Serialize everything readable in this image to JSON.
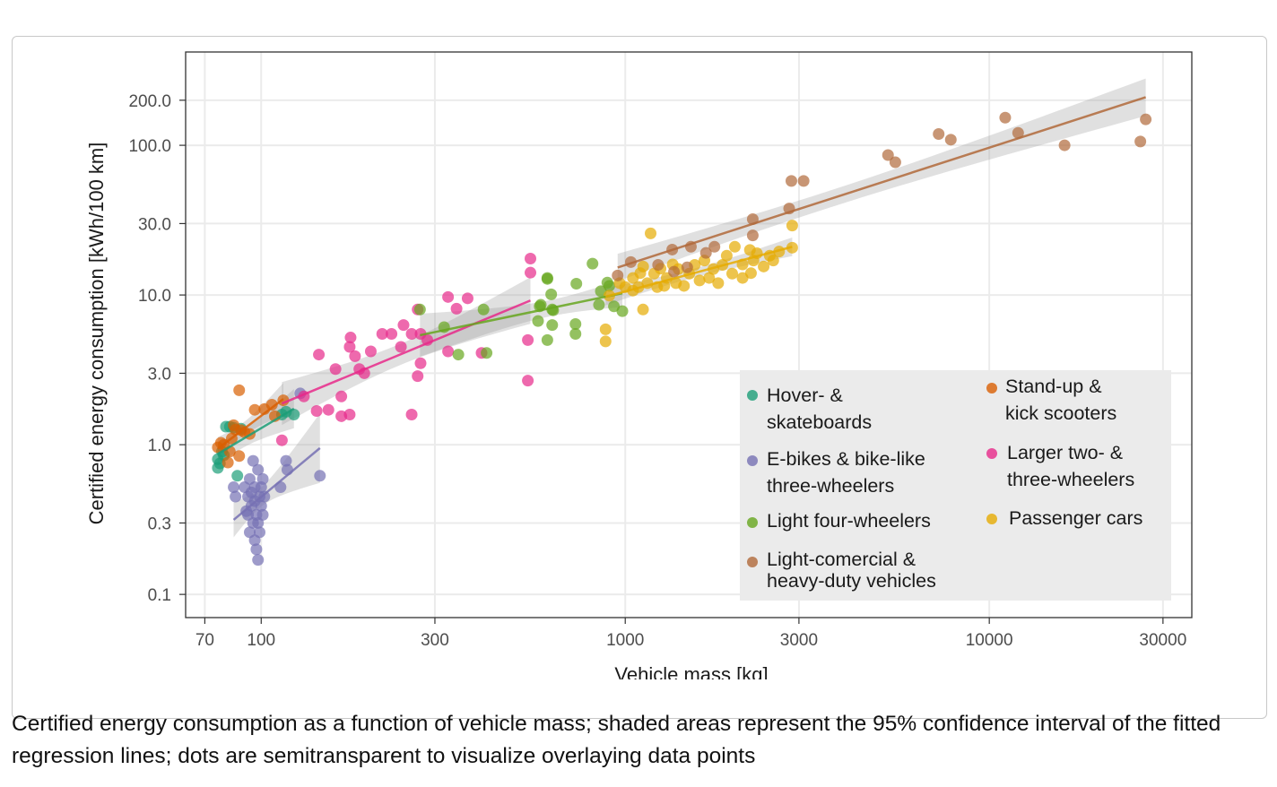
{
  "caption": "Certified energy consumption as a function of vehicle mass; shaded areas represent the 95% confidence interval of the fitted regression lines; dots are semitransparent to visualize overlaying data points",
  "chart_data": {
    "type": "scatter",
    "xlabel": "Vehicle mass [kg]",
    "ylabel": "Certified energy consumption [kWh/100 km]",
    "xscale": "log",
    "yscale": "log",
    "xlim": [
      62,
      36000
    ],
    "ylim": [
      0.07,
      420
    ],
    "xticks": [
      70,
      100,
      300,
      1000,
      3000,
      10000,
      30000
    ],
    "xtick_labels": [
      "70",
      "100",
      "300",
      "1000",
      "3000",
      "10000",
      "30000"
    ],
    "yticks": [
      0.1,
      0.3,
      1,
      3,
      10,
      30,
      100,
      200
    ],
    "ytick_labels": [
      "0.1",
      "0.3",
      "1.0",
      "3.0",
      "10.0",
      "30.0",
      "100.0",
      "200.0"
    ],
    "grid": true,
    "legend_position": "bottom-right",
    "regression": "log-log linear fit per series with 95% confidence band",
    "series": [
      {
        "name": "Hover- &\nskateboards",
        "color": "#1b9e77",
        "points": [
          [
            76,
            0.8
          ],
          [
            76,
            0.7
          ],
          [
            78,
            0.9
          ],
          [
            80,
            1.32
          ],
          [
            86,
            0.62
          ],
          [
            82,
            1.32
          ],
          [
            114,
            1.59
          ],
          [
            123,
            1.59
          ],
          [
            117,
            1.66
          ],
          [
            77,
            0.75
          ],
          [
            84,
            1.3
          ],
          [
            88,
            1.28
          ],
          [
            79,
            0.85
          ]
        ]
      },
      {
        "name": "Stand-up &\nkick scooters",
        "color": "#d95f02",
        "points": [
          [
            87,
            2.31
          ],
          [
            76,
            0.96
          ],
          [
            77.5,
            1.03
          ],
          [
            81,
            0.76
          ],
          [
            85,
            1.26
          ],
          [
            90,
            1.21
          ],
          [
            96,
            1.71
          ],
          [
            102,
            1.73
          ],
          [
            107,
            1.85
          ],
          [
            115,
            1.98
          ],
          [
            109,
            1.55
          ],
          [
            82,
            0.9
          ],
          [
            87,
            0.84
          ],
          [
            93,
            1.18
          ],
          [
            84,
            1.35
          ],
          [
            79,
            1.0
          ],
          [
            83,
            1.1
          ],
          [
            88,
            1.25
          ]
        ]
      },
      {
        "name": "E-bikes & bike-like\nthree-wheelers",
        "color": "#7570b3",
        "points": [
          [
            90,
            0.52
          ],
          [
            92,
            0.45
          ],
          [
            95,
            0.78
          ],
          [
            98,
            0.68
          ],
          [
            101,
            0.59
          ],
          [
            93,
            0.59
          ],
          [
            96,
            0.52
          ],
          [
            99,
            0.45
          ],
          [
            94,
            0.39
          ],
          [
            97,
            0.34
          ],
          [
            100,
            0.39
          ],
          [
            92,
            0.34
          ],
          [
            95,
            0.3
          ],
          [
            98,
            0.3
          ],
          [
            93,
            0.26
          ],
          [
            96,
            0.23
          ],
          [
            99,
            0.26
          ],
          [
            97,
            0.2
          ],
          [
            98,
            0.17
          ],
          [
            101,
            0.34
          ],
          [
            102,
            0.45
          ],
          [
            100,
            0.52
          ],
          [
            94,
            0.48
          ],
          [
            96,
            0.42
          ],
          [
            91,
            0.36
          ],
          [
            85,
            0.45
          ],
          [
            84,
            0.52
          ],
          [
            113,
            0.52
          ],
          [
            117,
            0.78
          ],
          [
            118,
            0.68
          ],
          [
            145,
            0.62
          ],
          [
            128,
            2.2
          ]
        ]
      },
      {
        "name": "Larger two- &\nthree-wheelers",
        "color": "#e7298a",
        "points": [
          [
            549,
            17.5
          ],
          [
            549,
            14.1
          ],
          [
            326,
            9.7
          ],
          [
            369,
            9.5
          ],
          [
            344,
            8.1
          ],
          [
            269,
            8.0
          ],
          [
            540,
            5.0
          ],
          [
            540,
            2.68
          ],
          [
            259,
            1.59
          ],
          [
            246,
            6.3
          ],
          [
            228,
            5.5
          ],
          [
            215,
            5.5
          ],
          [
            176,
            5.2
          ],
          [
            175,
            4.5
          ],
          [
            181,
            3.9
          ],
          [
            200,
            4.2
          ],
          [
            242,
            4.5
          ],
          [
            259,
            5.5
          ],
          [
            274,
            5.5
          ],
          [
            286,
            5.0
          ],
          [
            144,
            4.0
          ],
          [
            160,
            3.2
          ],
          [
            186,
            3.2
          ],
          [
            192,
            3.0
          ],
          [
            274,
            3.5
          ],
          [
            269,
            2.87
          ],
          [
            326,
            4.2
          ],
          [
            403,
            4.1
          ],
          [
            131,
            2.1
          ],
          [
            166,
            2.1
          ],
          [
            142,
            1.68
          ],
          [
            153,
            1.71
          ],
          [
            166,
            1.55
          ],
          [
            175,
            1.59
          ],
          [
            114,
            1.07
          ]
        ]
      },
      {
        "name": "Light four-wheelers",
        "color": "#66a61e",
        "points": [
          [
            611,
            13
          ],
          [
            626,
            10.1
          ],
          [
            582,
            8.4
          ],
          [
            630,
            8.0
          ],
          [
            576,
            6.7
          ],
          [
            630,
            6.3
          ],
          [
            611,
            5.0
          ],
          [
            408,
            8.0
          ],
          [
            318,
            6.1
          ],
          [
            348,
            4.0
          ],
          [
            416,
            4.1
          ],
          [
            273,
            8.0
          ],
          [
            813,
            16.2
          ],
          [
            611,
            12.8
          ],
          [
            734,
            11.9
          ],
          [
            893,
            12.1
          ],
          [
            857,
            10.6
          ],
          [
            586,
            8.6
          ],
          [
            634,
            7.9
          ],
          [
            730,
            6.4
          ],
          [
            730,
            5.5
          ],
          [
            847,
            8.6
          ],
          [
            931,
            8.4
          ],
          [
            982,
            7.8
          ],
          [
            904,
            11.5
          ]
        ]
      },
      {
        "name": "Passenger cars",
        "color": "#e6ab02",
        "points": [
          [
            1174,
            25.8
          ],
          [
            1119,
            8.0
          ],
          [
            883,
            5.9
          ],
          [
            883,
            4.9
          ],
          [
            2875,
            29.1
          ],
          [
            2875,
            20.7
          ],
          [
            904,
            9.9
          ],
          [
            965,
            12
          ],
          [
            1000,
            11.3
          ],
          [
            1050,
            13
          ],
          [
            1087,
            11.3
          ],
          [
            1100,
            14
          ],
          [
            1150,
            12
          ],
          [
            1200,
            13.9
          ],
          [
            1224,
            11.3
          ],
          [
            1250,
            15
          ],
          [
            1300,
            13
          ],
          [
            1378,
            12
          ],
          [
            1400,
            14.9
          ],
          [
            1450,
            11.5
          ],
          [
            1500,
            13.9
          ],
          [
            1552,
            15.9
          ],
          [
            1600,
            12.5
          ],
          [
            1650,
            17
          ],
          [
            1700,
            13
          ],
          [
            1746,
            14.9
          ],
          [
            1800,
            12
          ],
          [
            1850,
            15.9
          ],
          [
            1900,
            18.3
          ],
          [
            1967,
            13.9
          ],
          [
            2000,
            21
          ],
          [
            2100,
            16
          ],
          [
            2215,
            14
          ],
          [
            2250,
            17
          ],
          [
            2300,
            19
          ],
          [
            2400,
            15.5
          ],
          [
            2494,
            18.3
          ],
          [
            2550,
            17
          ],
          [
            2646,
            19.5
          ],
          [
            2200,
            20
          ],
          [
            1350,
            16
          ],
          [
            1280,
            11.5
          ],
          [
            1050,
            10.7
          ],
          [
            1120,
            15.5
          ],
          [
            2100,
            13
          ]
        ]
      },
      {
        "name": "Light-comercial &\nheavy-duty vehicles",
        "color": "#b0693a",
        "points": [
          [
            11060,
            153
          ],
          [
            26900,
            149
          ],
          [
            12000,
            121
          ],
          [
            7260,
            119
          ],
          [
            7840,
            109
          ],
          [
            16100,
            100
          ],
          [
            26000,
            106
          ],
          [
            5270,
            86
          ],
          [
            5520,
            77
          ],
          [
            2860,
            57.8
          ],
          [
            3090,
            57.8
          ],
          [
            2820,
            37.8
          ],
          [
            2240,
            32.1
          ],
          [
            2240,
            25.0
          ],
          [
            1346,
            20.1
          ],
          [
            1515,
            21
          ],
          [
            1758,
            21
          ],
          [
            1666,
            19.1
          ],
          [
            1036,
            16.6
          ],
          [
            953,
            13.5
          ],
          [
            1231,
            15.9
          ],
          [
            1361,
            14.3
          ],
          [
            1480,
            15.3
          ]
        ]
      }
    ]
  }
}
